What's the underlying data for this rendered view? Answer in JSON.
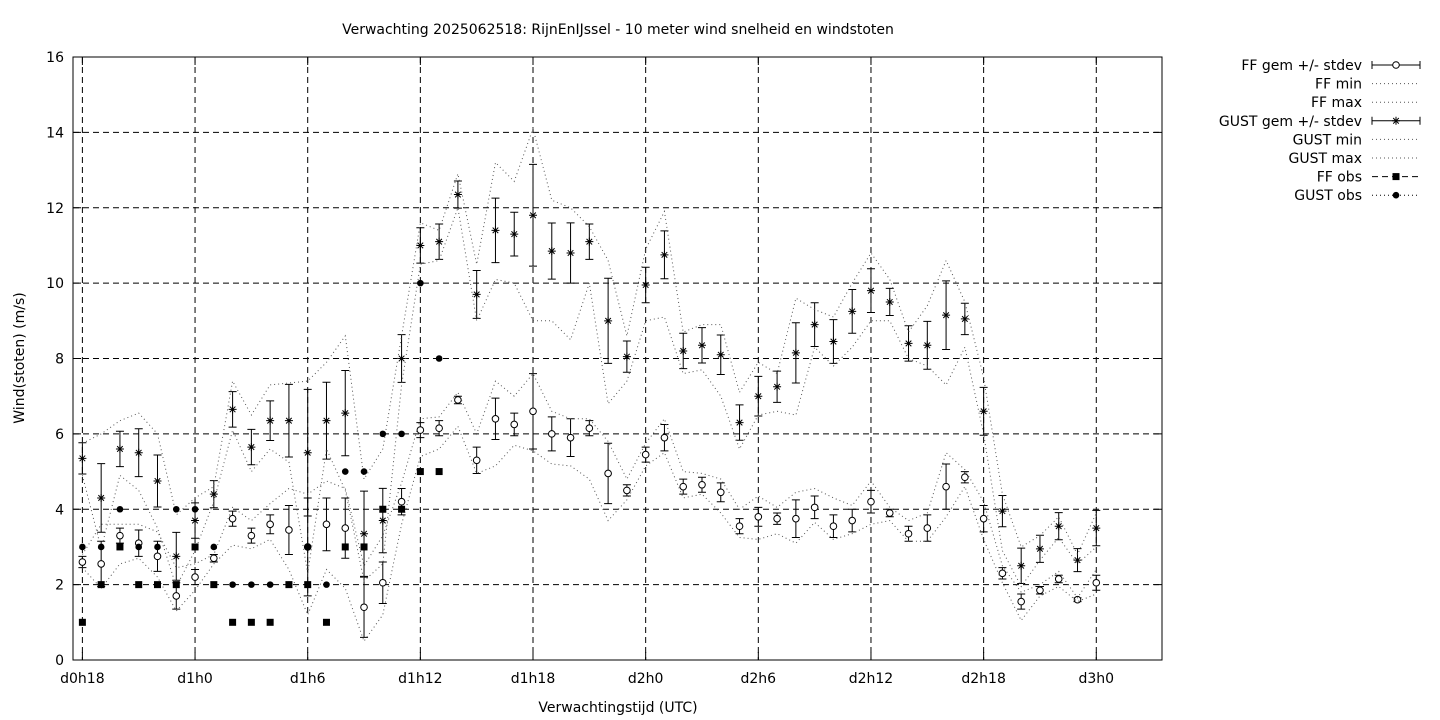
{
  "chart_data": {
    "type": "line",
    "title": "Verwachting 2025062518: RijnEnIJssel - 10 meter wind snelheid en windstoten",
    "xlabel": "Verwachtingstijd (UTC)",
    "ylabel": "Wind(stoten) (m/s)",
    "xlim": [
      17.5,
      75.5
    ],
    "ylim": [
      0,
      16
    ],
    "y_ticks": [
      0,
      2,
      4,
      6,
      8,
      10,
      12,
      14,
      16
    ],
    "x_ticks": [
      {
        "x": 18,
        "label": "d0h18"
      },
      {
        "x": 24,
        "label": "d1h0"
      },
      {
        "x": 30,
        "label": "d1h6"
      },
      {
        "x": 36,
        "label": "d1h12"
      },
      {
        "x": 42,
        "label": "d1h18"
      },
      {
        "x": 48,
        "label": "d2h0"
      },
      {
        "x": 54,
        "label": "d2h6"
      },
      {
        "x": 60,
        "label": "d2h12"
      },
      {
        "x": 66,
        "label": "d2h18"
      },
      {
        "x": 72,
        "label": "d3h0"
      }
    ],
    "grid": true,
    "legend_position": "outside-right",
    "x": [
      18,
      19,
      20,
      21,
      22,
      23,
      24,
      25,
      26,
      27,
      28,
      29,
      30,
      31,
      32,
      33,
      34,
      35,
      36,
      37,
      38,
      39,
      40,
      41,
      42,
      43,
      44,
      45,
      46,
      47,
      48,
      49,
      50,
      51,
      52,
      53,
      54,
      55,
      56,
      57,
      58,
      59,
      60,
      61,
      62,
      63,
      64,
      65,
      66,
      67,
      68,
      69,
      70,
      71,
      72
    ],
    "series": [
      {
        "name": "FF gem +/- stdev",
        "style": "errorbar-open-circle",
        "values": [
          2.6,
          2.55,
          3.3,
          3.1,
          2.75,
          1.7,
          2.2,
          2.7,
          3.75,
          3.3,
          3.6,
          3.45,
          3.0,
          3.6,
          3.5,
          1.4,
          2.05,
          4.2,
          6.1,
          6.15,
          6.9,
          5.3,
          6.4,
          6.25,
          6.6,
          6.0,
          5.9,
          6.15,
          4.95,
          4.5,
          5.45,
          5.9,
          4.6,
          4.65,
          4.45,
          3.55,
          3.8,
          3.75,
          3.75,
          4.05,
          3.55,
          3.7,
          4.2,
          3.9,
          3.35,
          3.5,
          4.6,
          4.85,
          3.75,
          2.3,
          1.55,
          1.85,
          2.15,
          1.6,
          2.05
        ],
        "stdev": [
          0.15,
          0.6,
          0.2,
          0.35,
          0.4,
          0.35,
          0.2,
          0.1,
          0.2,
          0.2,
          0.25,
          0.65,
          1.3,
          0.7,
          0.8,
          0.8,
          0.55,
          0.35,
          0.2,
          0.2,
          0.1,
          0.35,
          0.55,
          0.3,
          1.0,
          0.45,
          0.5,
          0.2,
          0.8,
          0.15,
          0.2,
          0.35,
          0.2,
          0.2,
          0.25,
          0.2,
          0.25,
          0.15,
          0.5,
          0.3,
          0.3,
          0.3,
          0.3,
          0.1,
          0.2,
          0.35,
          0.6,
          0.15,
          0.35,
          0.15,
          0.2,
          0.1,
          0.1,
          0.05,
          0.2
        ]
      },
      {
        "name": "FF min",
        "style": "dotted",
        "values": [
          2.45,
          1.9,
          2.55,
          2.7,
          2.2,
          1.3,
          1.85,
          2.55,
          3.05,
          2.95,
          3.2,
          2.4,
          1.2,
          2.4,
          1.9,
          0.5,
          1.2,
          3.6,
          5.4,
          5.6,
          6.2,
          4.95,
          5.15,
          5.7,
          5.55,
          5.2,
          5.15,
          4.8,
          3.7,
          4.25,
          5.15,
          5.5,
          4.3,
          4.4,
          3.9,
          3.25,
          3.2,
          3.35,
          3.1,
          3.65,
          3.2,
          3.35,
          3.6,
          3.7,
          3.15,
          3.15,
          3.8,
          4.6,
          3.2,
          2.05,
          1.05,
          1.7,
          1.95,
          1.55,
          1.75
        ]
      },
      {
        "name": "FF max",
        "style": "dotted",
        "values": [
          2.8,
          3.6,
          3.6,
          3.6,
          3.4,
          2.45,
          2.55,
          2.8,
          4.05,
          3.7,
          4.15,
          4.55,
          4.4,
          4.75,
          4.55,
          2.5,
          3.3,
          4.7,
          6.4,
          6.45,
          7.1,
          6.0,
          7.4,
          7.0,
          7.6,
          6.6,
          6.4,
          6.4,
          5.8,
          4.8,
          5.75,
          6.4,
          5.0,
          4.95,
          4.8,
          4.0,
          4.35,
          4.05,
          4.45,
          4.55,
          4.3,
          4.1,
          4.75,
          4.05,
          3.7,
          3.9,
          5.5,
          5.05,
          4.2,
          2.5,
          1.8,
          2.0,
          2.35,
          1.65,
          2.4
        ]
      },
      {
        "name": "GUST gem +/- stdev",
        "style": "errorbar-star",
        "values": [
          5.35,
          4.3,
          5.6,
          5.5,
          4.75,
          2.75,
          3.7,
          4.4,
          6.65,
          5.65,
          6.35,
          6.35,
          5.5,
          6.35,
          6.55,
          3.35,
          3.7,
          8.0,
          11.0,
          11.1,
          12.35,
          9.7,
          11.4,
          11.3,
          11.8,
          10.85,
          10.8,
          11.1,
          9.0,
          8.05,
          9.95,
          10.75,
          8.2,
          8.35,
          8.1,
          6.3,
          7.0,
          7.25,
          8.15,
          8.9,
          8.45,
          9.25,
          9.8,
          9.5,
          8.4,
          8.35,
          9.15,
          9.05,
          6.6,
          3.95,
          2.5,
          2.95,
          3.55,
          2.65,
          3.5
        ]
      },
      {
        "name": "GUST min",
        "style": "dotted",
        "values": [
          4.9,
          2.95,
          4.9,
          4.5,
          3.5,
          1.95,
          2.9,
          4.2,
          6.1,
          5.0,
          5.6,
          5.25,
          2.3,
          5.6,
          4.5,
          2.1,
          2.55,
          7.3,
          10.5,
          10.6,
          12.0,
          9.0,
          10.1,
          10.0,
          9.0,
          9.0,
          8.5,
          10.0,
          6.8,
          7.4,
          9.0,
          9.1,
          7.6,
          7.7,
          7.0,
          5.6,
          6.5,
          6.6,
          6.5,
          8.3,
          7.8,
          8.3,
          9.0,
          9.0,
          8.0,
          7.8,
          7.3,
          8.3,
          6.0,
          2.9,
          1.95,
          2.65,
          3.25,
          2.55,
          3.0
        ]
      },
      {
        "name": "GUST max",
        "style": "dotted",
        "values": [
          5.75,
          6.0,
          6.35,
          6.55,
          6.0,
          3.85,
          4.3,
          4.6,
          7.4,
          6.5,
          7.3,
          7.35,
          7.4,
          7.9,
          8.6,
          4.8,
          5.6,
          8.6,
          11.6,
          11.4,
          12.9,
          10.5,
          13.2,
          12.7,
          14.1,
          12.2,
          12.0,
          11.5,
          10.6,
          8.6,
          10.9,
          11.9,
          8.7,
          8.9,
          8.9,
          7.1,
          7.9,
          7.6,
          9.6,
          9.3,
          9.1,
          10.0,
          10.8,
          10.1,
          8.7,
          9.4,
          10.6,
          9.5,
          7.5,
          4.4,
          3.0,
          3.3,
          3.8,
          2.8,
          3.9
        ]
      },
      {
        "name": "FF obs",
        "style": "filled-square",
        "values": [
          1,
          2,
          3,
          2,
          2,
          2,
          3,
          2,
          1,
          1,
          1,
          2,
          2,
          1,
          3,
          3,
          4,
          4,
          5,
          5,
          null,
          null,
          null,
          null,
          null,
          null,
          null,
          null,
          null,
          null,
          null,
          null,
          null,
          null,
          null,
          null,
          null,
          null,
          null,
          null,
          null,
          null,
          null,
          null,
          null,
          null,
          null,
          null,
          null,
          null,
          null,
          null,
          null,
          null,
          null
        ]
      },
      {
        "name": "GUST obs",
        "style": "filled-circle",
        "values": [
          3,
          3,
          4,
          3,
          3,
          4,
          4,
          3,
          2,
          2,
          2,
          2,
          3,
          2,
          5,
          5,
          6,
          6,
          10,
          8,
          null,
          null,
          null,
          null,
          null,
          null,
          null,
          null,
          null,
          null,
          null,
          null,
          null,
          null,
          null,
          null,
          null,
          null,
          null,
          null,
          null,
          null,
          null,
          null,
          null,
          null,
          null,
          null,
          null,
          null,
          null,
          null,
          null,
          null,
          null
        ]
      }
    ]
  }
}
